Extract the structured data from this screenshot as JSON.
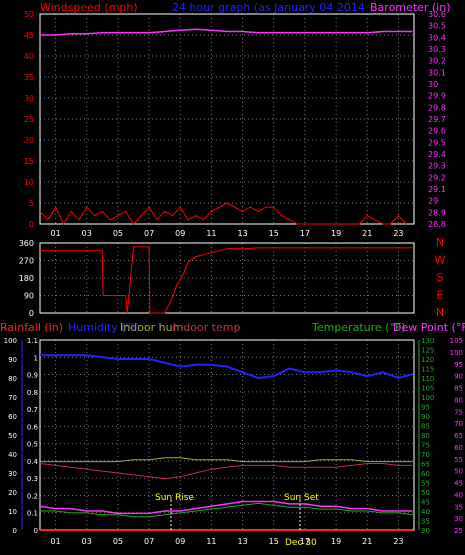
{
  "colors": {
    "wind": "#ff0000",
    "gust": "#3333ff",
    "barometer": "#ff33ff",
    "title": "#2222ff",
    "direction": "#ff0000",
    "humidity": "#2222ff",
    "indoor_hum": "#aaaa33",
    "indoor_temp": "#bb3344",
    "temperature": "#22aa22",
    "dew_point": "#ff33ff",
    "rainfall": "#ff2222",
    "grid": "#777777",
    "axis": "#ffffff",
    "tick_label": "#ffffff",
    "sun": "#ffff00"
  },
  "panel1": {
    "title": "24 hour graph (as   January 04 2014",
    "left_label": "Windspeed (mph)",
    "right_label": "Barometer (in)",
    "left_ticks": [
      "0",
      "5",
      "10",
      "15",
      "20",
      "25",
      "30",
      "35",
      "40",
      "45",
      "50"
    ],
    "right_ticks": [
      "28.8",
      "28.9",
      "29",
      "29.1",
      "29.2",
      "29.3",
      "29.4",
      "29.5",
      "29.6",
      "29.7",
      "29.8",
      "29.9",
      "30",
      "30.1",
      "30.2",
      "30.3",
      "30.4",
      "30.5",
      "30.6"
    ],
    "x_ticks": [
      "01",
      "03",
      "05",
      "07",
      "09",
      "11",
      "13",
      "15",
      "17",
      "19",
      "21",
      "23"
    ]
  },
  "panel2": {
    "left_ticks": [
      "0",
      "90",
      "180",
      "270",
      "360"
    ],
    "compass": [
      "N",
      "W",
      "S",
      "E",
      "N"
    ]
  },
  "panel3": {
    "labels": {
      "rainfall": "Rainfall (in)",
      "humidity": "Humidity (%)",
      "indoor_hum": "Indoor hum",
      "indoor_temp": "Indoor temp",
      "temperature": "Temperature (°F)",
      "dew_point": "Dew Point (°F)"
    },
    "hum_ticks": [
      "0",
      "10",
      "20",
      "30",
      "40",
      "50",
      "60",
      "70",
      "80",
      "90",
      "100"
    ],
    "rain_ticks": [
      "0",
      "0.1",
      "0.2",
      "0.3",
      "0.4",
      "0.5",
      "0.6",
      "0.7",
      "0.8",
      "0.9",
      "1",
      "1.1"
    ],
    "temp_ticks": [
      "30",
      "35",
      "40",
      "45",
      "50",
      "55",
      "60",
      "65",
      "70",
      "75",
      "80",
      "85",
      "90",
      "95",
      "100",
      "105",
      "110",
      "115",
      "120",
      "125",
      "130"
    ],
    "dew_ticks": [
      "25",
      "30",
      "35",
      "40",
      "45",
      "50",
      "55",
      "60",
      "65",
      "70",
      "75",
      "80",
      "85",
      "90",
      "95",
      "100",
      "105"
    ],
    "x_ticks": [
      "01",
      "03",
      "05",
      "07",
      "09",
      "11",
      "13",
      "15",
      "17",
      "19",
      "21",
      "23"
    ],
    "date_label": "Dec 30",
    "sunrise": "Sun Rise",
    "sunset": "Sun Set"
  },
  "chart_data": [
    {
      "type": "line",
      "series": [
        {
          "name": "Barometer (in)",
          "x": [
            0.0,
            1,
            2,
            3,
            4,
            5,
            6,
            7,
            8,
            9,
            10,
            11,
            12,
            13,
            14,
            15,
            16,
            17,
            18,
            19,
            20,
            21,
            22,
            23,
            23.9
          ],
          "values": [
            30.42,
            30.42,
            30.43,
            30.43,
            30.44,
            30.44,
            30.44,
            30.44,
            30.45,
            30.46,
            30.47,
            30.46,
            30.45,
            30.45,
            30.44,
            30.44,
            30.44,
            30.44,
            30.44,
            30.44,
            30.44,
            30.44,
            30.45,
            30.45,
            30.45
          ]
        },
        {
          "name": "Windspeed (mph)",
          "x": [
            0.0,
            0.5,
            1,
            1.5,
            2,
            2.5,
            3,
            3.5,
            4,
            4.5,
            5,
            5.5,
            6,
            6.5,
            7,
            7.5,
            8,
            8.5,
            9,
            9.5,
            10,
            10.5,
            11,
            11.5,
            12,
            12.5,
            13,
            13.5,
            14,
            14.5,
            15,
            15.5,
            16,
            16.5,
            17,
            17.5,
            18,
            18.5,
            19,
            19.5,
            20,
            20.5,
            21,
            21.5,
            22,
            22.5,
            23,
            23.5
          ],
          "values": [
            3,
            1,
            4,
            0,
            3,
            1,
            4,
            2,
            3,
            1,
            2,
            3,
            0,
            2,
            4,
            1,
            3,
            2,
            4,
            1,
            2,
            1,
            3,
            4,
            5,
            4,
            3,
            4,
            3,
            4,
            4,
            2,
            1,
            0,
            0,
            0,
            0,
            0,
            0,
            0,
            0,
            0,
            2,
            1,
            0,
            0,
            2,
            0
          ]
        }
      ],
      "ylabel": "Windspeed (mph)",
      "y2label": "Barometer (in)",
      "ylim": [
        0,
        50
      ],
      "y2lim": [
        28.8,
        30.6
      ],
      "xlim": [
        0,
        24
      ]
    },
    {
      "type": "line",
      "series": [
        {
          "x": [
            0.0,
            1,
            2,
            3,
            3.5,
            4,
            4.05,
            5,
            5.5,
            5.6,
            6,
            6.5,
            7,
            7.05,
            8,
            8.5,
            8.8,
            9,
            9.2,
            9.5,
            10,
            10.5,
            11,
            11.5,
            12,
            13,
            14,
            15,
            16,
            17,
            18,
            19,
            20,
            21,
            22,
            23,
            23.9
          ],
          "values": [
            320,
            320,
            320,
            320,
            320,
            320,
            90,
            90,
            90,
            0,
            340,
            340,
            340,
            0,
            0,
            80,
            150,
            170,
            200,
            260,
            290,
            300,
            310,
            320,
            330,
            330,
            335,
            335,
            335,
            335,
            335,
            335,
            335,
            335,
            335,
            335,
            335
          ]
        }
      ],
      "ylim": [
        0,
        360
      ],
      "xlim": [
        0,
        24
      ]
    },
    {
      "type": "line",
      "series": [
        {
          "name": "Humidity (%)",
          "x": [
            0.0,
            1,
            2,
            3,
            4,
            5,
            6,
            7,
            8,
            9,
            10,
            11,
            12,
            13,
            14,
            15,
            16,
            17,
            18,
            19,
            20,
            21,
            22,
            23,
            23.9
          ],
          "values": [
            92,
            92,
            92,
            92,
            91,
            90,
            90,
            90,
            88,
            86,
            87,
            87,
            86,
            83,
            80,
            81,
            85,
            83,
            83,
            84,
            83,
            81,
            83,
            80,
            82
          ]
        },
        {
          "name": "Indoor hum",
          "x": [
            0.0,
            1,
            2,
            3,
            4,
            5,
            6,
            7,
            8,
            9,
            10,
            11,
            12,
            13,
            14,
            15,
            16,
            17,
            18,
            19,
            20,
            21,
            22,
            23,
            23.9
          ],
          "values": [
            36,
            36,
            36,
            36,
            36,
            36,
            37,
            37,
            38,
            38,
            37,
            37,
            37,
            36,
            36,
            36,
            36,
            36,
            37,
            37,
            37,
            36,
            36,
            36,
            36
          ]
        },
        {
          "name": "Indoor temp",
          "x": [
            0.0,
            1,
            2,
            3,
            4,
            5,
            6,
            7,
            8,
            9,
            10,
            11,
            12,
            13,
            14,
            15,
            16,
            17,
            18,
            19,
            20,
            21,
            22,
            23,
            23.9
          ],
          "values": [
            65,
            64,
            63,
            62,
            61,
            60,
            59,
            58,
            57,
            58,
            60,
            62,
            63,
            64,
            64,
            64,
            63,
            63,
            63,
            63,
            64,
            65,
            65,
            64,
            64
          ]
        },
        {
          "name": "Temperature (°F)",
          "x": [
            0.0,
            1,
            2,
            3,
            4,
            5,
            6,
            7,
            8,
            9,
            10,
            11,
            12,
            13,
            14,
            15,
            16,
            17,
            18,
            19,
            20,
            21,
            22,
            23,
            23.9
          ],
          "values": [
            40,
            40,
            39,
            39,
            38,
            38,
            37,
            37,
            38,
            39,
            40,
            41,
            42,
            43,
            44,
            43,
            42,
            42,
            41,
            41,
            40,
            40,
            39,
            39,
            38
          ]
        },
        {
          "name": "Dew Point (°F)",
          "x": [
            0.0,
            1,
            2,
            3,
            4,
            5,
            6,
            7,
            8,
            9,
            10,
            11,
            12,
            13,
            14,
            15,
            16,
            17,
            18,
            19,
            20,
            21,
            22,
            23,
            23.9
          ],
          "values": [
            35,
            34,
            34,
            33,
            33,
            32,
            32,
            32,
            33,
            33,
            34,
            35,
            36,
            37,
            37,
            37,
            36,
            36,
            35,
            35,
            34,
            34,
            33,
            33,
            33
          ]
        },
        {
          "name": "Rainfall (in)",
          "x": [
            0.0,
            1,
            2,
            3,
            4,
            5,
            6,
            7,
            8,
            9,
            10,
            11,
            12,
            13,
            14,
            15,
            16,
            17,
            18,
            19,
            20,
            21,
            22,
            23,
            23.9
          ],
          "values": [
            0,
            0,
            0,
            0,
            0,
            0,
            0,
            0,
            0,
            0,
            0,
            0,
            0,
            0,
            0,
            0,
            0,
            0,
            0,
            0,
            0,
            0,
            0,
            0,
            0
          ]
        }
      ],
      "ylim": [
        0,
        100
      ],
      "xlim": [
        0,
        24
      ]
    }
  ]
}
